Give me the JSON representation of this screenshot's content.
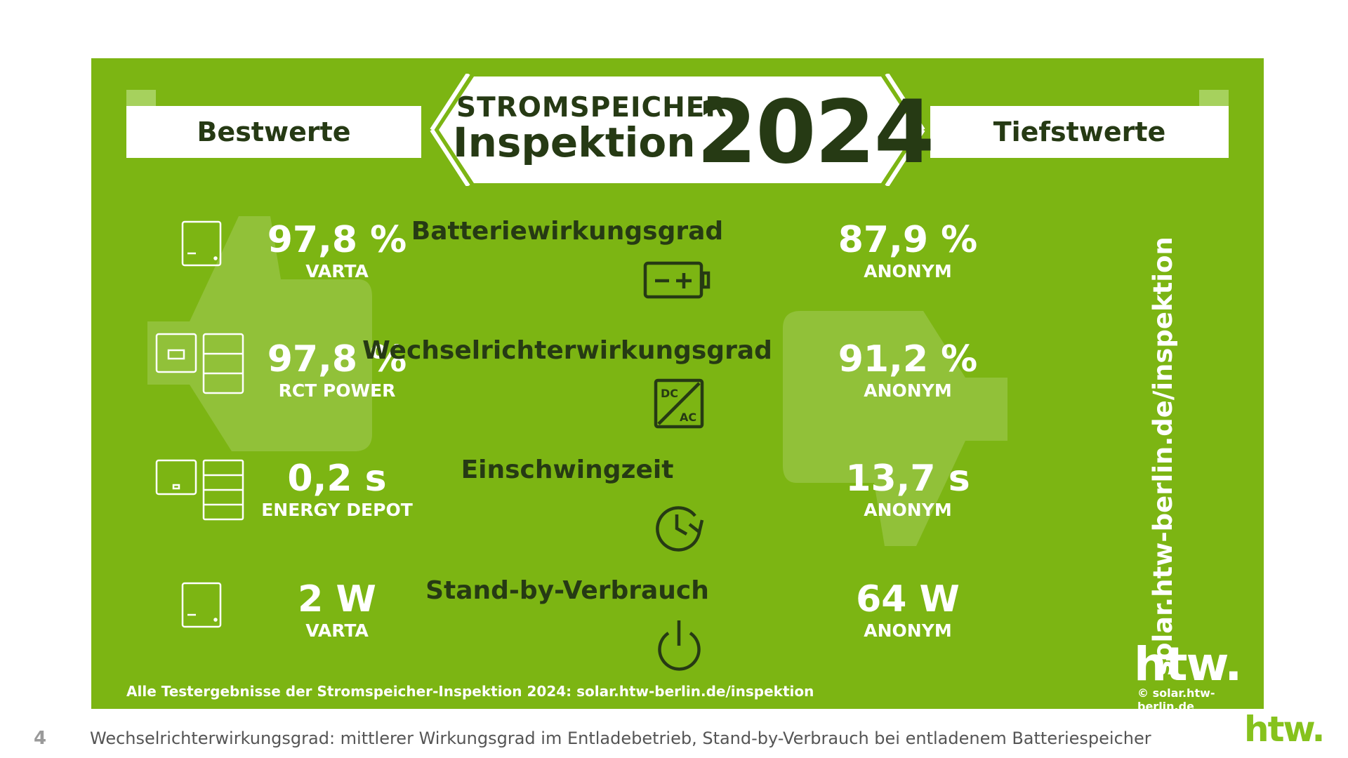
{
  "colors": {
    "panel": "#7cb513",
    "dark_text": "#263a14",
    "white": "#ffffff",
    "accent": "#86c21d"
  },
  "header": {
    "left_banner": "Bestwerte",
    "right_banner": "Tiefstwerte",
    "title_line1": "STROMSPEICHER",
    "title_line2": "Inspektion",
    "year": "2024"
  },
  "rows": [
    {
      "category": "Batteriewirkungsgrad",
      "icon": "battery-icon",
      "best": {
        "value": "97,8 %",
        "name": "VARTA",
        "device_icon": "single-cabinet-icon"
      },
      "worst": {
        "value": "87,9 %",
        "name": "ANONYM"
      }
    },
    {
      "category": "Wechselrichterwirkungsgrad",
      "icon": "dc-ac-converter-icon",
      "best": {
        "value": "97,8 %",
        "name": "RCT POWER",
        "device_icon": "inverter-with-stack-icon"
      },
      "worst": {
        "value": "91,2 %",
        "name": "ANONYM"
      }
    },
    {
      "category": "Einschwingzeit",
      "icon": "clock-refresh-icon",
      "best": {
        "value": "0,2 s",
        "name": "ENERGY DEPOT",
        "device_icon": "inverter-with-modules-icon"
      },
      "worst": {
        "value": "13,7 s",
        "name": "ANONYM"
      }
    },
    {
      "category": "Stand-by-Verbrauch",
      "icon": "power-icon",
      "best": {
        "value": "2 W",
        "name": "VARTA",
        "device_icon": "single-cabinet-icon"
      },
      "worst": {
        "value": "64 W",
        "name": "ANONYM"
      }
    }
  ],
  "side_url": "solar.htw-berlin.de/inspektion",
  "logo": "htw.",
  "copyright": "© solar.htw-berlin.de",
  "footer_note": "Alle Testergebnisse der Stromspeicher-Inspektion 2024: solar.htw-berlin.de/inspektion",
  "page_number": "4",
  "caption": "Wechselrichterwirkungsgrad: mittlerer Wirkungsgrad im Entladebetrieb, Stand-by-Verbrauch bei entladenem Batteriespeicher"
}
